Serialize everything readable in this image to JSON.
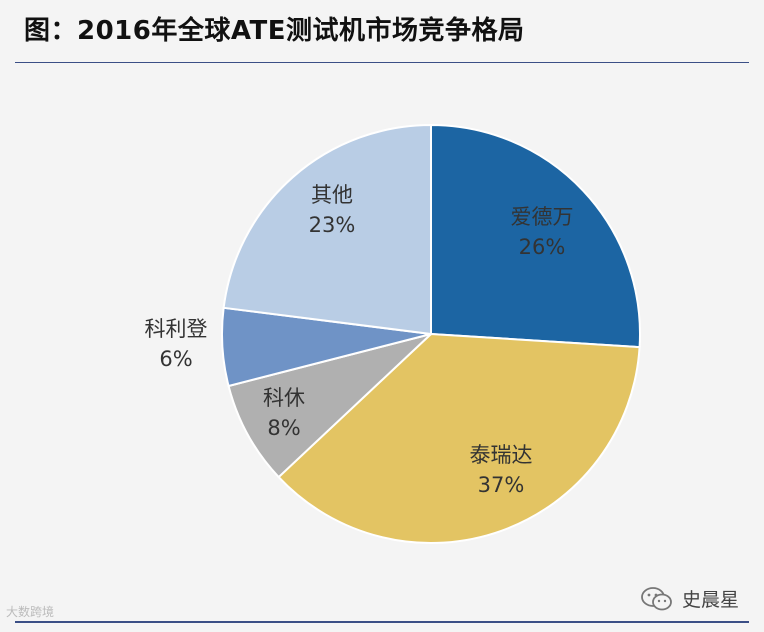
{
  "header": {
    "title": "图：2016年全球ATE测试机市场竞争格局"
  },
  "chart_data": {
    "type": "pie",
    "title": "图：2016年全球ATE测试机市场竞争格局",
    "slices": [
      {
        "label": "爱德万",
        "value": 26,
        "display": "26%",
        "color": "#1c65a3"
      },
      {
        "label": "泰瑞达",
        "value": 37,
        "display": "37%",
        "color": "#e3c463"
      },
      {
        "label": "科休",
        "value": 8,
        "display": "8%",
        "color": "#b0b0b0"
      },
      {
        "label": "科利登",
        "value": 6,
        "display": "6%",
        "color": "#6f93c6"
      },
      {
        "label": "其他",
        "value": 23,
        "display": "23%",
        "color": "#b9cde5"
      }
    ]
  },
  "watermarks": {
    "left_text": "大数跨境",
    "right_text": "史晨星",
    "right_icon": "wechat-icon"
  }
}
